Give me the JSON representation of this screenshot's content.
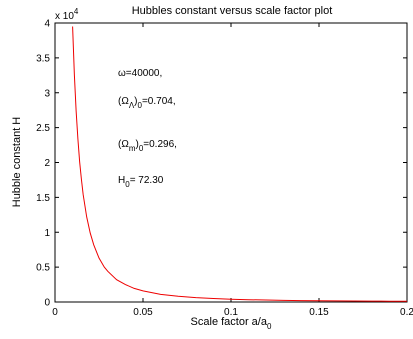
{
  "chart_data": {
    "type": "line",
    "title": "Hubbles constant  versus scale factor plot",
    "xlabel": {
      "main": "Scale factor a/a",
      "sub": "0"
    },
    "ylabel": "Hubble constant H",
    "xlim": [
      0,
      0.2
    ],
    "ylim": [
      0,
      40000
    ],
    "x_ticks": [
      0,
      0.05,
      0.1,
      0.15,
      0.2
    ],
    "x_tick_labels": [
      "0",
      "0.05",
      "0.1",
      "0.15",
      "0.2"
    ],
    "y_ticks": [
      0,
      5000,
      10000,
      15000,
      20000,
      25000,
      30000,
      35000,
      40000
    ],
    "y_tick_labels": [
      "0",
      "0.5",
      "1",
      "1.5",
      "2",
      "2.5",
      "3",
      "3.5",
      "4"
    ],
    "y_exponent": {
      "base": "x 10",
      "power": "4"
    },
    "grid": false,
    "series": [
      {
        "color": "#ee0000",
        "x": [
          0.01,
          0.011,
          0.012,
          0.013,
          0.014,
          0.015,
          0.016,
          0.018,
          0.02,
          0.022,
          0.025,
          0.028,
          0.03,
          0.035,
          0.04,
          0.045,
          0.05,
          0.06,
          0.07,
          0.08,
          0.09,
          0.1,
          0.11,
          0.12,
          0.13,
          0.14,
          0.15,
          0.16,
          0.17,
          0.18,
          0.19,
          0.2
        ],
        "y": [
          39500,
          32600,
          27400,
          23400,
          20100,
          17600,
          15400,
          12200,
          9900,
          8200,
          6300,
          5000,
          4400,
          3200,
          2500,
          1950,
          1600,
          1100,
          820,
          630,
          500,
          400,
          330,
          280,
          240,
          205,
          175,
          155,
          140,
          125,
          112,
          100
        ]
      }
    ],
    "annotations": [
      {
        "parts": [
          {
            "t": "ω=40000,"
          }
        ]
      },
      {
        "parts": [
          {
            "t": "(Ω"
          },
          {
            "t": "Λ",
            "sub": true
          },
          {
            "t": ")"
          },
          {
            "t": "0",
            "sub": true
          },
          {
            "t": "=0.704,"
          }
        ]
      },
      {
        "parts": [
          {
            "t": "(Ω"
          },
          {
            "t": "m",
            "sub": true
          },
          {
            "t": ")"
          },
          {
            "t": "0",
            "sub": true
          },
          {
            "t": "=0.296,"
          }
        ]
      },
      {
        "parts": [
          {
            "t": "H"
          },
          {
            "t": "0",
            "sub": true
          },
          {
            "t": "= 72.30"
          }
        ]
      }
    ]
  }
}
